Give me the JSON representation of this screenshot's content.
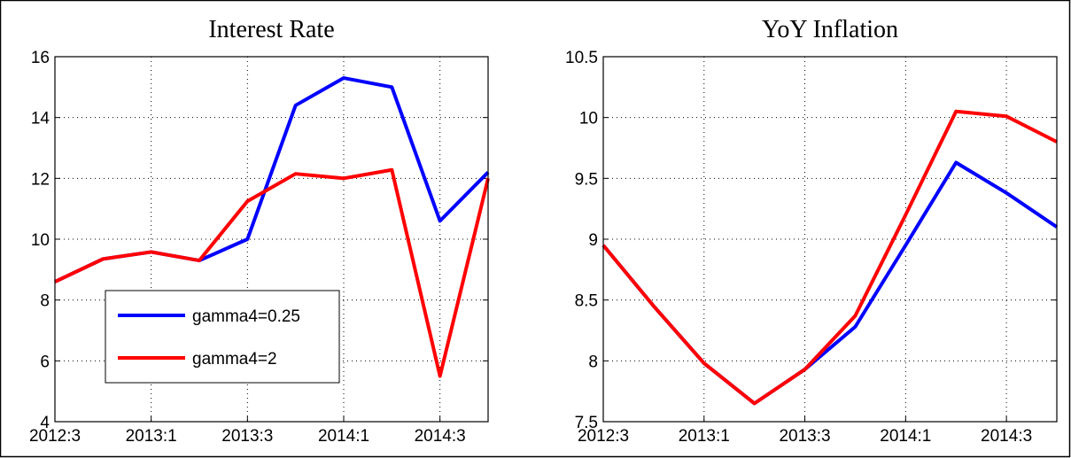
{
  "chart_data": [
    {
      "type": "line",
      "title": "Interest Rate",
      "categories": [
        "2012:3",
        null,
        "2013:1",
        null,
        "2013:3",
        null,
        "2014:1",
        null,
        "2014:3",
        null
      ],
      "series": [
        {
          "name": "gamma4=0.25",
          "color": "#0000ff",
          "values": [
            8.6,
            9.35,
            9.58,
            9.3,
            10.0,
            14.4,
            15.3,
            15.0,
            10.6,
            12.2
          ]
        },
        {
          "name": "gamma4=2",
          "color": "#ff0000",
          "values": [
            8.6,
            9.35,
            9.58,
            9.3,
            11.25,
            12.15,
            12.0,
            12.28,
            5.5,
            12.0
          ]
        }
      ],
      "ylim": [
        4,
        16
      ],
      "yticks": [
        4,
        6,
        8,
        10,
        12,
        14,
        16
      ],
      "grid": true,
      "legend": "lower left"
    },
    {
      "type": "line",
      "title": "YoY Inflation",
      "categories": [
        "2012:3",
        null,
        "2013:1",
        null,
        "2013:3",
        null,
        "2014:1",
        null,
        "2014:3",
        null
      ],
      "series": [
        {
          "color": "#0000ff",
          "values": [
            8.95,
            8.45,
            7.98,
            7.65,
            7.93,
            8.28,
            8.95,
            9.63,
            9.38,
            9.1
          ]
        },
        {
          "color": "#ff0000",
          "values": [
            8.95,
            8.45,
            7.98,
            7.65,
            7.93,
            8.37,
            9.2,
            10.05,
            10.01,
            9.8
          ]
        }
      ],
      "ylim": [
        7.5,
        10.5
      ],
      "yticks": [
        7.5,
        8,
        8.5,
        9,
        9.5,
        10,
        10.5
      ],
      "grid": true
    }
  ]
}
